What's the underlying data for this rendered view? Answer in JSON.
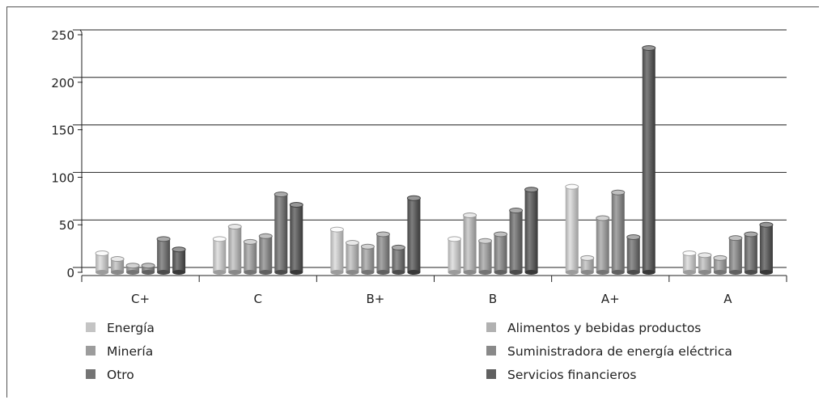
{
  "chart_data": {
    "type": "bar",
    "categories": [
      "C+",
      "C",
      "B+",
      "B",
      "A+",
      "A"
    ],
    "series": [
      {
        "name": "Energía",
        "color": "#c4c4c4",
        "values": [
          20,
          35,
          45,
          35,
          90,
          20
        ]
      },
      {
        "name": "Alimentos y bebidas productos",
        "color": "#b1b1b1",
        "values": [
          14,
          48,
          31,
          60,
          15,
          18
        ]
      },
      {
        "name": "Minería",
        "color": "#9c9c9c",
        "values": [
          7,
          32,
          27,
          33,
          57,
          15
        ]
      },
      {
        "name": "Suministradora de energía eléctrica",
        "color": "#898989",
        "values": [
          7,
          38,
          40,
          40,
          84,
          36
        ]
      },
      {
        "name": "Otro",
        "color": "#747474",
        "values": [
          35,
          82,
          26,
          65,
          37,
          40
        ]
      },
      {
        "name": "Servicios financieros",
        "color": "#606060",
        "values": [
          24,
          71,
          78,
          87,
          236,
          50
        ]
      }
    ],
    "yticks": [
      0,
      50,
      100,
      150,
      200,
      250
    ],
    "ylim": [
      0,
      250
    ],
    "grid": true,
    "legend": "bottom",
    "title": "",
    "xlabel": "",
    "ylabel": ""
  }
}
